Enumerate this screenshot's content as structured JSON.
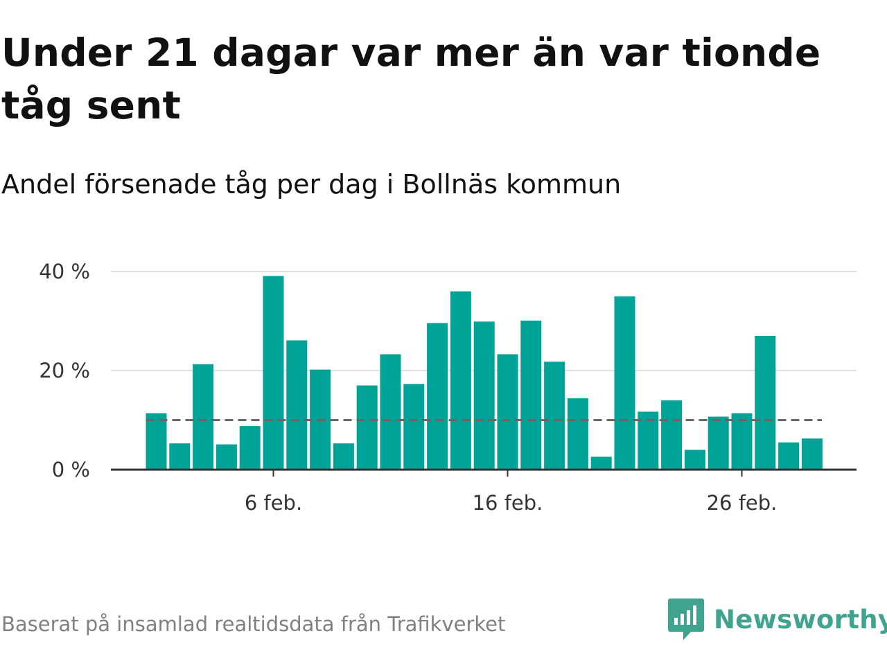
{
  "title": "Under 21 dagar var mer än var tionde tåg sent",
  "subtitle": "Andel försenade tåg per dag i Bollnäs kommun",
  "source": "Baserat på insamlad realtidsdata från Trafikverket",
  "brand": {
    "name": "Newsworthy",
    "icon": "newsworthy-logo-icon",
    "color": "#3fa38f"
  },
  "colors": {
    "bar": "#00a398",
    "reference_line": "#666666",
    "grid": "#e0e0e0",
    "axis": "#333333"
  },
  "chart_data": {
    "type": "bar",
    "xlabel": "",
    "ylabel": "",
    "x": [
      "2024-02-01",
      "2024-02-02",
      "2024-02-03",
      "2024-02-04",
      "2024-02-05",
      "2024-02-06",
      "2024-02-07",
      "2024-02-08",
      "2024-02-09",
      "2024-02-10",
      "2024-02-11",
      "2024-02-12",
      "2024-02-13",
      "2024-02-14",
      "2024-02-15",
      "2024-02-16",
      "2024-02-17",
      "2024-02-18",
      "2024-02-19",
      "2024-02-20",
      "2024-02-21",
      "2024-02-22",
      "2024-02-23",
      "2024-02-24",
      "2024-02-25",
      "2024-02-26",
      "2024-02-27",
      "2024-02-28",
      "2024-02-29"
    ],
    "values": [
      11.4,
      5.3,
      21.3,
      5.1,
      8.8,
      39.1,
      26.1,
      20.2,
      5.3,
      17.0,
      23.3,
      17.3,
      29.6,
      36.0,
      29.9,
      23.3,
      30.1,
      21.8,
      14.4,
      2.6,
      35.0,
      11.7,
      14.0,
      4.0,
      10.7,
      11.4,
      27.0,
      5.5,
      6.3
    ],
    "reference_line": 10,
    "ylim": [
      0,
      40
    ],
    "yticks": [
      0,
      20,
      40
    ],
    "ytick_labels": [
      "0 %",
      "20 %",
      "40 %"
    ],
    "xticks": [
      "2024-02-06",
      "2024-02-16",
      "2024-02-26"
    ],
    "xtick_labels": [
      "6 feb.",
      "16 feb.",
      "26 feb."
    ],
    "grid": true
  }
}
